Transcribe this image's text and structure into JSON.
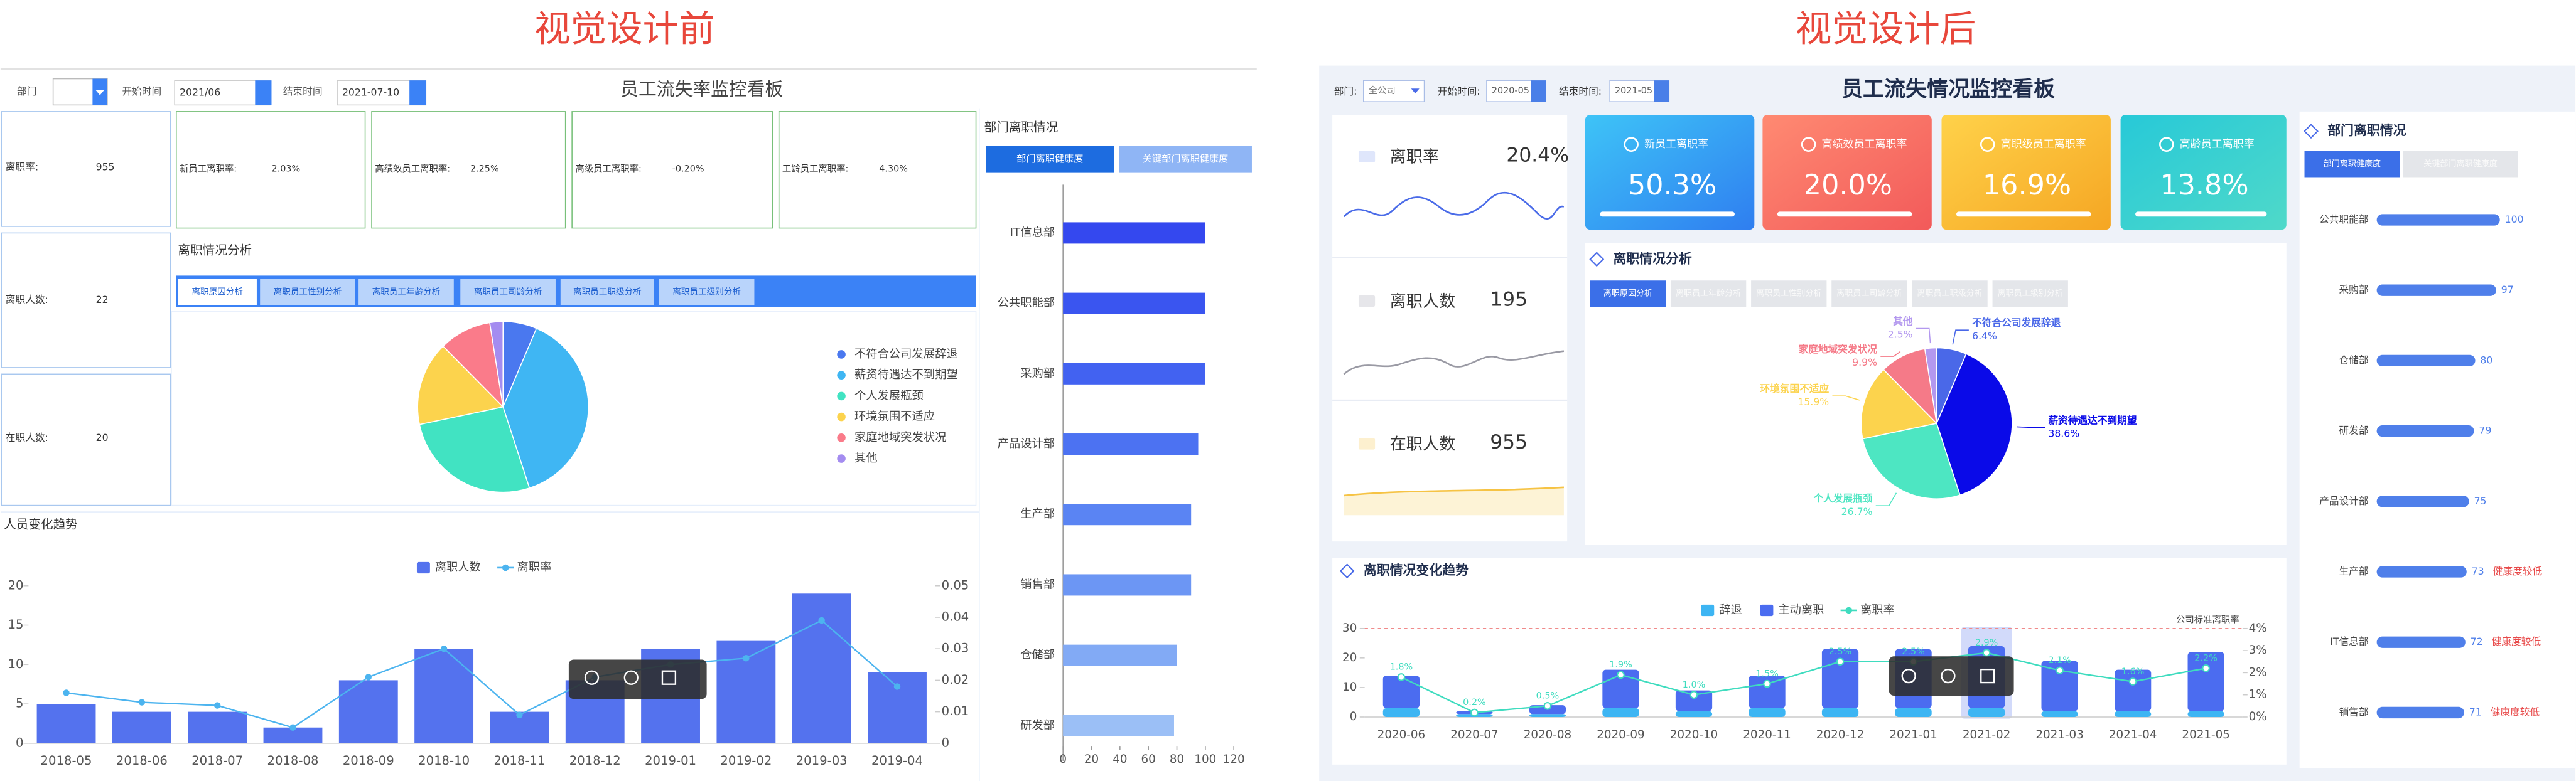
{
  "before": {
    "heading": "视觉设计前",
    "title": "员工流失率监控看板",
    "filters": {
      "dept_label": "部门",
      "start_label": "开始时间",
      "start": "2021/06",
      "end_label": "结束时间",
      "end": "2021-07-10"
    },
    "kpis": [
      {
        "label": "离职率:",
        "value": "955"
      },
      {
        "label": "离职人数:",
        "value": "22"
      },
      {
        "label": "在职人数:",
        "value": "20"
      }
    ],
    "rate_boxes": [
      {
        "label": "新员工离职率:",
        "value": "2.03%"
      },
      {
        "label": "高绩效员工离职率:",
        "value": "2.25%"
      },
      {
        "label": "高级员工离职率:",
        "value": "-0.20%"
      },
      {
        "label": "工龄员工离职率:",
        "value": "4.30%"
      }
    ],
    "analysis_title": "离职情况分析",
    "tabs": [
      "离职原因分析",
      "离职员工性别分析",
      "离职员工年龄分析",
      "离职员工司龄分析",
      "离职员工职级分析",
      "离职员工级别分析"
    ],
    "trend_title": "人员变化趋势",
    "dept_title": "部门离职情况",
    "dept_tabs": [
      "部门离职健康度",
      "关键部门离职健康度"
    ]
  },
  "after": {
    "heading": "视觉设计后",
    "title": "员工流失情况监控看板",
    "filters": {
      "dept_label": "部门:",
      "dept": "全公司",
      "start_label": "开始时间:",
      "start": "2020-05",
      "end_label": "结束时间:",
      "end": "2021-05"
    },
    "kpis": [
      {
        "label": "离职率",
        "value": "20.4%"
      },
      {
        "label": "离职人数",
        "value": "195"
      },
      {
        "label": "在职人数",
        "value": "955"
      }
    ],
    "rate_cards": [
      {
        "label": "新员工离职率",
        "value": "50.3%"
      },
      {
        "label": "高绩效员工离职率",
        "value": "20.0%"
      },
      {
        "label": "高职级员工离职率",
        "value": "16.9%"
      },
      {
        "label": "高龄员工离职率",
        "value": "13.8%"
      }
    ],
    "analysis_title": "离职情况分析",
    "tabs": [
      "离职原因分析",
      "离职员工年龄分析",
      "离职员工性别分析",
      "离职员工司龄分析",
      "离职员工职级分析",
      "离职员工级别分析"
    ],
    "trend_title": "离职情况变化趋势",
    "dept_title": "部门离职情况",
    "dept_tabs": [
      "部门离职健康度",
      "关键部门离职健康度"
    ]
  },
  "chart_data": [
    {
      "type": "pie",
      "categories": [
        "不符合公司发展辞退",
        "薪资待遇达不到期望",
        "个人发展瓶颈",
        "环境氛围不适应",
        "家庭地域突发状况",
        "其他"
      ],
      "values": [
        6.4,
        38.6,
        26.7,
        15.9,
        9.9,
        2.5
      ],
      "colors": [
        "#4a78ef",
        "#3fb6f3",
        "#41e3c2",
        "#fcd34d",
        "#fa7b8a",
        "#a48cf0"
      ]
    },
    {
      "type": "combo",
      "categories": [
        "2018-05",
        "2018-06",
        "2018-07",
        "2018-08",
        "2018-09",
        "2018-10",
        "2018-11",
        "2018-12",
        "2019-01",
        "2019-02",
        "2019-03",
        "2019-04"
      ],
      "series": [
        {
          "name": "离职人数",
          "type": "bar",
          "color": "#5472ee",
          "values": [
            5,
            4,
            4,
            2,
            8,
            12,
            4,
            8,
            12,
            13,
            19,
            9
          ]
        },
        {
          "name": "离职率",
          "type": "line",
          "axis": "y2",
          "color": "#4cb4ef",
          "values": [
            0.016,
            0.013,
            0.012,
            0.005,
            0.021,
            0.03,
            0.009,
            0.021,
            0.025,
            0.027,
            0.039,
            0.018
          ]
        }
      ],
      "ylim": [
        0,
        20
      ],
      "yticks": [
        0,
        5,
        10,
        15,
        20
      ],
      "y2lim": [
        0,
        0.05
      ],
      "y2ticks": [
        0,
        0.01,
        0.02,
        0.03,
        0.04,
        0.05
      ]
    },
    {
      "type": "hbar",
      "categories": [
        "IT信息部",
        "公共职能部",
        "采购部",
        "产品设计部",
        "生产部",
        "销售部",
        "仓储部",
        "研发部"
      ],
      "values": [
        100,
        100,
        100,
        95,
        90,
        90,
        80,
        78
      ],
      "colors": [
        "#3448ef",
        "#3a55f0",
        "#4262f1",
        "#4c72f2",
        "#5a84f3",
        "#6c96f4",
        "#82aaf5",
        "#9bbff6"
      ],
      "xlim": [
        0,
        120
      ],
      "xticks": [
        0,
        20,
        40,
        60,
        80,
        100,
        120
      ]
    },
    {
      "type": "pie",
      "categories": [
        "不符合公司发展辞退",
        "薪资待遇达不到期望",
        "个人发展瓶颈",
        "环境氛围不适应",
        "家庭地域突发状况",
        "其他"
      ],
      "values": [
        6.4,
        38.6,
        26.7,
        15.9,
        9.9,
        2.5
      ],
      "value_labels": [
        "6.4%",
        "38.6%",
        "26.7%",
        "15.9%",
        "9.9%",
        "2.5%"
      ],
      "colors": [
        "#4a68e8",
        "#0a0ae8",
        "#4de6c2",
        "#fcd34d",
        "#f57a88",
        "#b398ef"
      ]
    },
    {
      "type": "hbar",
      "categories": [
        "公共职能部",
        "采购部",
        "仓储部",
        "研发部",
        "产品设计部",
        "生产部",
        "IT信息部",
        "销售部"
      ],
      "values": [
        100,
        97,
        80,
        79,
        75,
        73,
        72,
        71
      ],
      "notes": [
        null,
        null,
        null,
        null,
        null,
        "健康度较低",
        "健康度较低",
        "健康度较低"
      ],
      "color": "#4f7fea"
    },
    {
      "type": "combo",
      "stacked": true,
      "categories": [
        "2020-06",
        "2020-07",
        "2020-08",
        "2020-09",
        "2020-10",
        "2020-11",
        "2020-12",
        "2021-01",
        "2021-02",
        "2021-03",
        "2021-04",
        "2021-05"
      ],
      "series": [
        {
          "name": "辞退",
          "type": "bar",
          "color": "#3db5f3",
          "values": [
            3,
            1,
            1,
            3,
            2,
            3,
            3,
            3,
            3,
            2,
            2,
            2
          ]
        },
        {
          "name": "主动离职",
          "type": "bar",
          "color": "#4b6cf0",
          "values": [
            11,
            1,
            3,
            13,
            7,
            11,
            20,
            20,
            21,
            17,
            14,
            20
          ]
        },
        {
          "name": "离职率",
          "type": "line",
          "axis": "y2",
          "color": "#3fdcbf",
          "values": [
            1.8,
            0.2,
            0.5,
            1.9,
            1.0,
            1.5,
            2.5,
            2.5,
            2.9,
            2.1,
            1.6,
            2.2
          ],
          "value_labels": [
            "1.8%",
            "0.2%",
            "0.5%",
            "1.9%",
            "1.0%",
            "1.5%",
            "2.5%",
            "2.5%",
            "2.9%",
            "2.1%",
            "1.6%",
            "2.2%"
          ]
        }
      ],
      "ylim": [
        0,
        30
      ],
      "yticks": [
        0,
        10,
        20,
        30
      ],
      "y2lim": [
        0,
        4
      ],
      "y2ticks": [
        {
          "value": 0,
          "label": "0%"
        },
        {
          "value": 1,
          "label": "1%"
        },
        {
          "value": 2,
          "label": "2%"
        },
        {
          "value": 3,
          "label": "3%"
        },
        {
          "value": 4,
          "label": "4%"
        }
      ],
      "reference": {
        "label": "公司标准离职率",
        "value": 4
      }
    }
  ]
}
